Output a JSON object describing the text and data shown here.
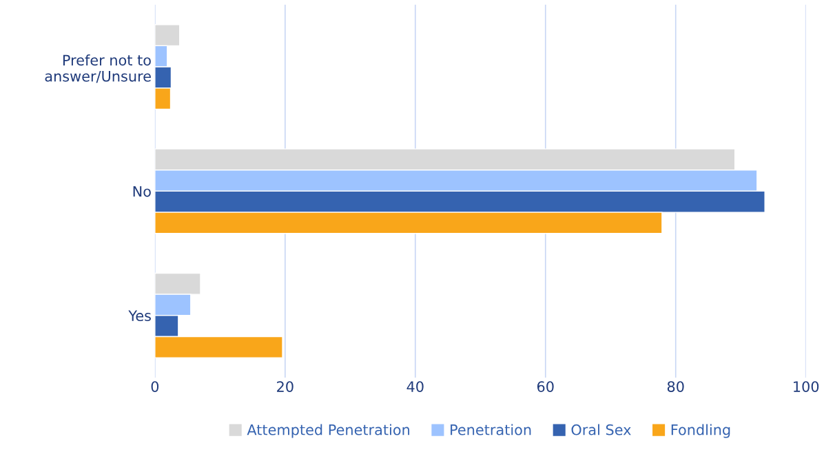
{
  "chart_data": {
    "type": "bar",
    "orientation": "horizontal",
    "categories": [
      "Prefer not to answer/Unsure",
      "No",
      "Yes"
    ],
    "series": [
      {
        "name": "Attempted Penetration",
        "color": "#d9d9d9",
        "values": [
          3.8,
          89.1,
          7.0
        ]
      },
      {
        "name": "Penetration",
        "color": "#9dc3ff",
        "values": [
          1.9,
          92.5,
          5.5
        ]
      },
      {
        "name": "Oral Sex",
        "color": "#3563b0",
        "values": [
          2.5,
          93.7,
          3.6
        ]
      },
      {
        "name": "Fondling",
        "color": "#f9a61a",
        "values": [
          2.4,
          77.9,
          19.6
        ]
      }
    ],
    "xlim": [
      0,
      100
    ],
    "xticks": [
      0,
      20,
      40,
      60,
      80,
      100
    ],
    "grid": "x",
    "legend": "bottom"
  }
}
